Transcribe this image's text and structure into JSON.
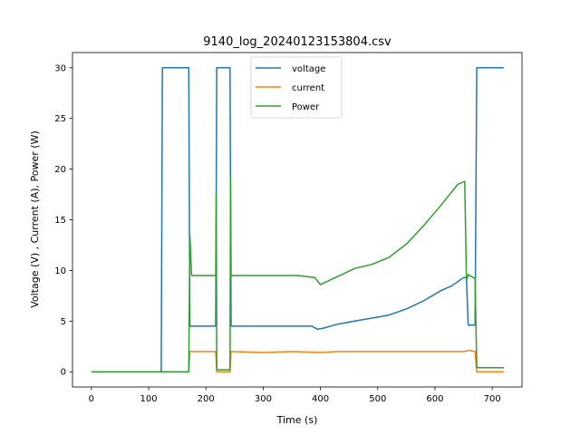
{
  "chart_data": {
    "type": "line",
    "title": "9140_log_20240123153804.csv",
    "xlabel": "Time (s)",
    "ylabel": "Voltage (V) , Current (A), Power (W)",
    "xlim": [
      -33,
      752
    ],
    "ylim": [
      -1.5,
      31.5
    ],
    "xticks": [
      0,
      100,
      200,
      300,
      400,
      500,
      600,
      700
    ],
    "yticks": [
      0,
      5,
      10,
      15,
      20,
      25,
      30
    ],
    "grid": false,
    "legend_position": "top-center",
    "series": [
      {
        "name": "voltage",
        "color": "#1f77b4",
        "x": [
          0,
          122,
          124,
          170,
          172,
          217,
          219,
          242,
          244,
          270,
          300,
          330,
          360,
          385,
          395,
          405,
          430,
          460,
          490,
          520,
          550,
          580,
          610,
          630,
          650,
          655,
          658,
          670,
          673,
          678,
          720
        ],
        "y": [
          0,
          0,
          30,
          30,
          4.5,
          4.5,
          30,
          30,
          4.5,
          4.5,
          4.5,
          4.5,
          4.5,
          4.5,
          4.2,
          4.3,
          4.7,
          5.0,
          5.3,
          5.6,
          6.2,
          7.0,
          8.0,
          8.5,
          9.3,
          9.3,
          4.6,
          4.6,
          30,
          30,
          30
        ]
      },
      {
        "name": "current",
        "color": "#ff7f0e",
        "x": [
          0,
          170,
          172,
          217,
          219,
          242,
          244,
          300,
          350,
          400,
          430,
          500,
          600,
          650,
          660,
          670,
          673,
          720
        ],
        "y": [
          0,
          0,
          2.0,
          2.0,
          0,
          0,
          2.0,
          1.9,
          2.0,
          1.9,
          2.0,
          2.0,
          2.0,
          2.0,
          2.1,
          2.0,
          0,
          0
        ]
      },
      {
        "name": "Power",
        "color": "#2ca02c",
        "x": [
          0,
          170,
          172,
          175,
          200,
          217,
          218,
          219,
          242,
          243,
          244,
          250,
          280,
          320,
          360,
          390,
          400,
          430,
          460,
          490,
          520,
          550,
          580,
          610,
          640,
          652,
          655,
          658,
          670,
          673,
          720
        ],
        "y": [
          0,
          0,
          13.5,
          9.5,
          9.5,
          9.5,
          17.5,
          0.2,
          0.2,
          19.2,
          9.5,
          9.5,
          9.5,
          9.5,
          9.5,
          9.3,
          8.6,
          9.4,
          10.2,
          10.6,
          11.3,
          12.6,
          14.4,
          16.4,
          18.5,
          18.8,
          9.0,
          9.6,
          9.2,
          0.4,
          0.4
        ]
      }
    ]
  }
}
